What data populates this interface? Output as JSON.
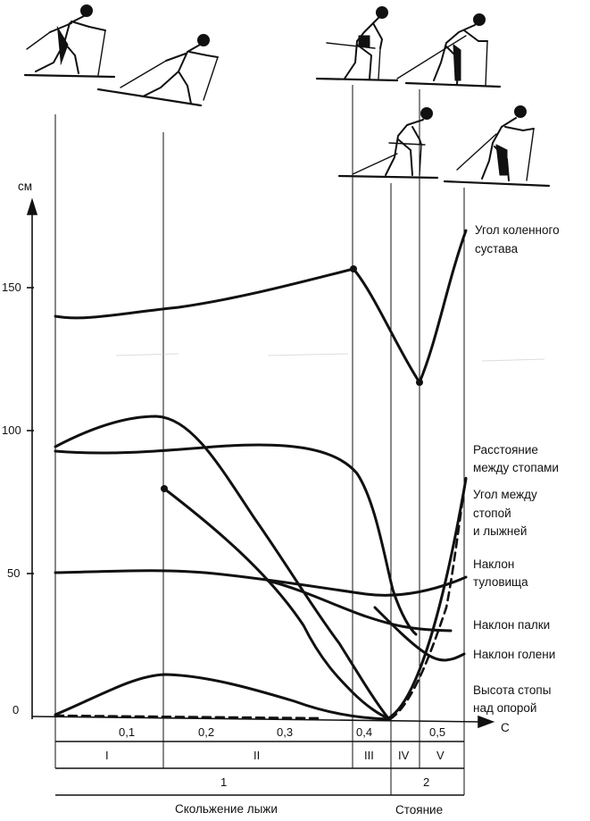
{
  "axis": {
    "y_unit": "см",
    "x_unit": "С",
    "y_ticks": [
      "150",
      "100",
      "50",
      "0"
    ],
    "x_ticks": [
      "0,1",
      "0,2",
      "0,3",
      "0,4",
      "0,5"
    ]
  },
  "phases": {
    "row1": [
      "I",
      "II",
      "III",
      "IV",
      "V"
    ],
    "row2": [
      "1",
      "2"
    ],
    "captions": [
      "Скольжение лыжи",
      "Стояние"
    ]
  },
  "series_labels": {
    "knee": [
      "Угол коленного",
      "сустава"
    ],
    "feet_distance": [
      "Расстояние",
      "между стопами"
    ],
    "foot_ski_angle": [
      "Угол между",
      "стопой",
      "и лыжней"
    ],
    "trunk_tilt": [
      "Наклон",
      "туловища"
    ],
    "pole_tilt": [
      "Наклон палки"
    ],
    "shin_tilt": [
      "Наклон голени"
    ],
    "foot_height": [
      "Высота стопы",
      "над опорой"
    ]
  },
  "illustrations": [
    "skier-phase-figure"
  ]
}
